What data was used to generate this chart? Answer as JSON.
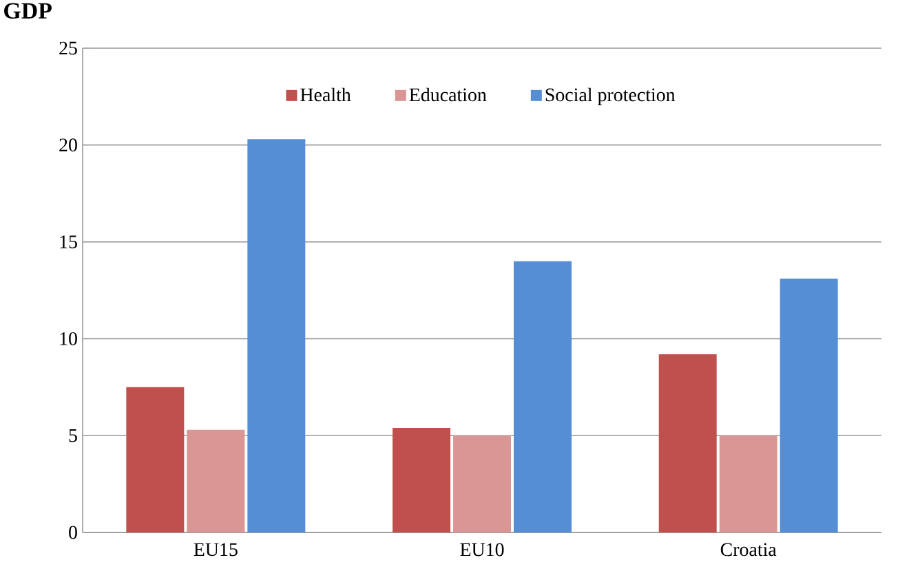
{
  "chart_data": {
    "type": "bar",
    "title": "GDP",
    "categories": [
      "EU15",
      "EU10",
      "Croatia"
    ],
    "series": [
      {
        "name": "Health",
        "color": "#c0504d",
        "values": [
          7.5,
          5.4,
          9.2
        ]
      },
      {
        "name": "Education",
        "color": "#d99694",
        "values": [
          5.3,
          5.0,
          5.0
        ]
      },
      {
        "name": "Social protection",
        "color": "#558ed5",
        "values": [
          20.3,
          14.0,
          13.1
        ]
      }
    ],
    "ylim": [
      0,
      25
    ],
    "yticks": [
      0,
      5,
      10,
      15,
      20,
      25
    ],
    "grid": "y",
    "legend": "top"
  }
}
